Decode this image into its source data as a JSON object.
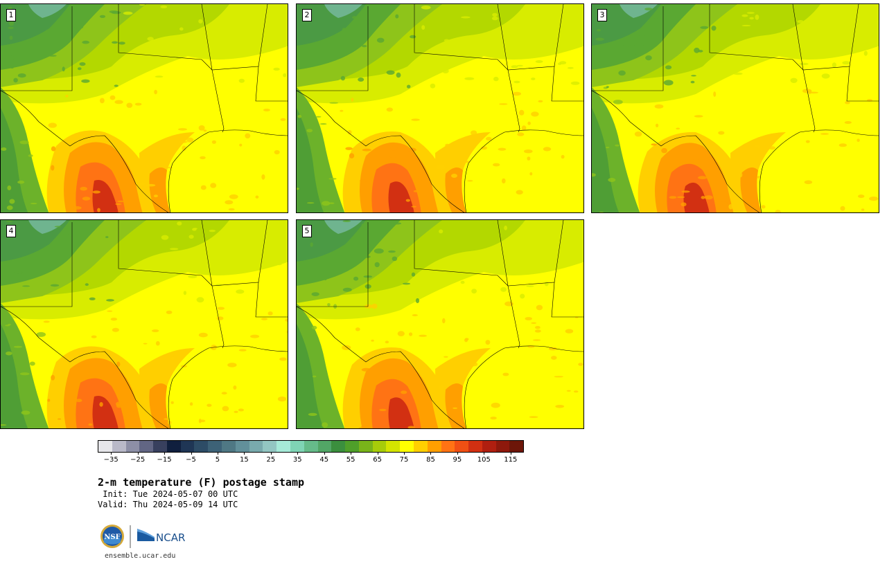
{
  "panels": [
    {
      "label": "1",
      "variant": 0
    },
    {
      "label": "2",
      "variant": 1
    },
    {
      "label": "3",
      "variant": 2
    },
    {
      "label": "4",
      "variant": 3
    },
    {
      "label": "5",
      "variant": 4
    }
  ],
  "colorbar": {
    "colors": [
      "#e6e6ea",
      "#b9b9c8",
      "#8d8fa6",
      "#626684",
      "#38405e",
      "#101f3e",
      "#1f3655",
      "#2d4c66",
      "#3d6277",
      "#4f7884",
      "#62909a",
      "#79aaad",
      "#93c6c2",
      "#a6ead8",
      "#7fd4b5",
      "#66bb8a",
      "#52a666",
      "#3b8f3e",
      "#4f9f2a",
      "#79b41a",
      "#a7cc0a",
      "#d4e400",
      "#ffff00",
      "#ffcf00",
      "#ff9f00",
      "#ff7314",
      "#f05014",
      "#d23012",
      "#b01f10",
      "#8e190c",
      "#6d1609"
    ],
    "tick_labels": [
      "−35",
      "−25",
      "−15",
      "−5",
      "5",
      "15",
      "25",
      "35",
      "45",
      "55",
      "65",
      "75",
      "85",
      "95",
      "105",
      "115"
    ],
    "tick_values": [
      -35,
      -25,
      -15,
      -5,
      5,
      15,
      25,
      35,
      45,
      55,
      65,
      75,
      85,
      95,
      105,
      115
    ],
    "range": [
      -40,
      120
    ]
  },
  "title": "2-m temperature (F) postage stamp",
  "init": " Init: Tue 2024-05-07 00 UTC",
  "valid": "Valid: Thu 2024-05-09 14 UTC",
  "logos": {
    "nsf": "NSF",
    "ncar": "NCAR"
  },
  "site": "ensemble.ucar.edu"
}
